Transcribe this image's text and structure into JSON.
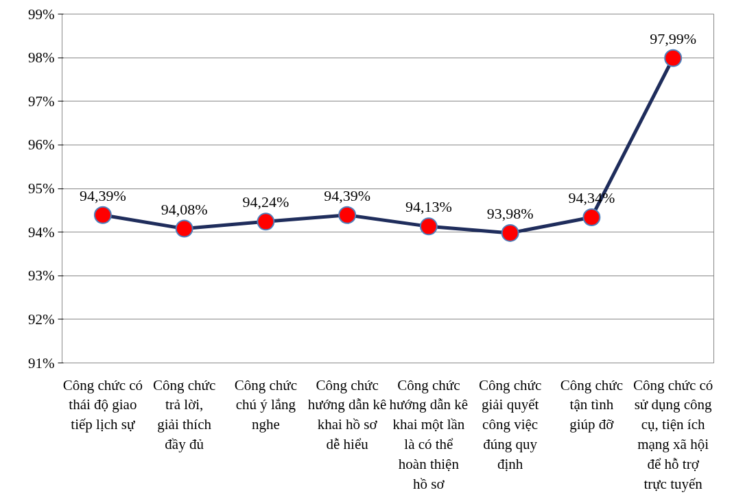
{
  "chart_data": {
    "type": "line",
    "categories": [
      "Công chức có thái độ giao tiếp lịch sự",
      "Công chức trả lời, giải thích đầy đủ",
      "Công chức chú ý lắng nghe",
      "Công chức hướng dẫn kê khai hồ sơ dễ hiểu",
      "Công chức hướng dẫn kê khai một lần là có thể hoàn thiện hồ sơ",
      "Công chức giải quyết công việc đúng quy định",
      "Công chức tận tình giúp đỡ",
      "Công chức có sử dụng công cụ, tiện ích mạng xã hội để hỗ trợ trực tuyến"
    ],
    "series": [
      {
        "color": "#1f2d5c",
        "colors": [
          "#ff0000",
          "#ff0000",
          "#ff0000",
          "#ff0000",
          "#ff0000",
          "#ff0000",
          "#ff0000",
          "#ff0000"
        ],
        "values": [
          94.39,
          94.08,
          94.24,
          94.39,
          94.13,
          93.98,
          94.34,
          97.99
        ],
        "value_labels": [
          "94,39%",
          "94,08%",
          "94,24%",
          "94,39%",
          "94,13%",
          "93,98%",
          "94,34%",
          "97,99%"
        ]
      }
    ],
    "ylim": [
      91,
      99
    ],
    "yticks": [
      {
        "value": 91,
        "label": "91%"
      },
      {
        "value": 92,
        "label": "92%"
      },
      {
        "value": 93,
        "label": "93%"
      },
      {
        "value": 94,
        "label": "94%"
      },
      {
        "value": 95,
        "label": "95%"
      },
      {
        "value": 96,
        "label": "96%"
      },
      {
        "value": 97,
        "label": "97%"
      },
      {
        "value": 98,
        "label": "98%"
      },
      {
        "value": 99,
        "label": "99%"
      }
    ],
    "grid": "y",
    "marker": "circle",
    "line_style": "solid"
  }
}
